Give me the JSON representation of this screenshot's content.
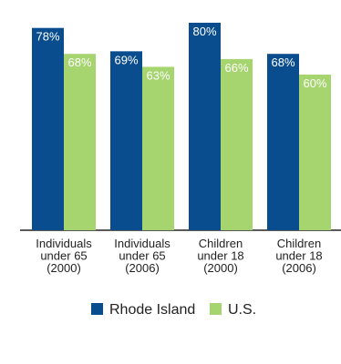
{
  "chart_data": {
    "type": "bar",
    "title": "",
    "categories": [
      [
        "Individuals",
        "under 65",
        "(2000)"
      ],
      [
        "Individuals",
        "under 65",
        "(2006)"
      ],
      [
        "Children",
        "under 18",
        "(2000)"
      ],
      [
        "Children",
        "under 18",
        "(2006)"
      ]
    ],
    "series": [
      {
        "name": "Rhode Island",
        "color": "#0a4d8f",
        "values": [
          78,
          69,
          80,
          68
        ],
        "labels": [
          "78%",
          "69%",
          "80%",
          "68%"
        ]
      },
      {
        "name": "U.S.",
        "color": "#a6d46f",
        "values": [
          68,
          63,
          66,
          60
        ],
        "labels": [
          "68%",
          "63%",
          "66%",
          "60%"
        ]
      }
    ],
    "ylim": [
      0,
      100
    ],
    "legend": "bottom-center",
    "grid": false
  }
}
